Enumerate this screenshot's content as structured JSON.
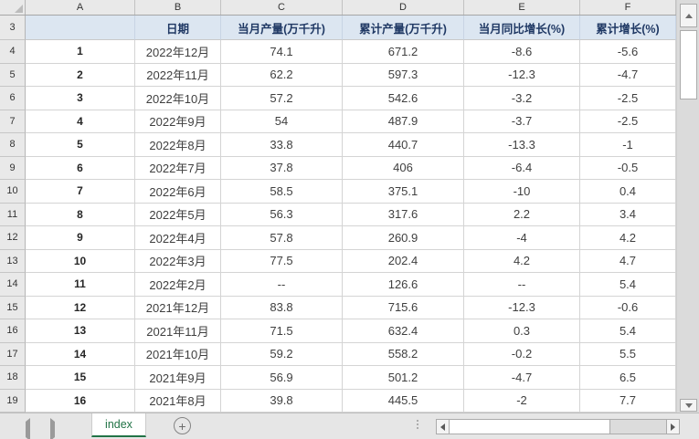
{
  "colors": {
    "header_fill": "#dce6f1",
    "header_text": "#1f3864",
    "tab_green": "#217346",
    "grid_line": "#d4d4d4"
  },
  "column_letters": [
    "A",
    "B",
    "C",
    "D",
    "E",
    "F"
  ],
  "header_row": {
    "row_number": "3",
    "cells": [
      "",
      "日期",
      "当月产量(万千升)",
      "累计产量(万千升)",
      "当月同比增长(%)",
      "累计增长(%)"
    ]
  },
  "rows": [
    {
      "n": "4",
      "a": "1",
      "b": "2022年12月",
      "c": "74.1",
      "d": "671.2",
      "e": "-8.6",
      "f": "-5.6"
    },
    {
      "n": "5",
      "a": "2",
      "b": "2022年11月",
      "c": "62.2",
      "d": "597.3",
      "e": "-12.3",
      "f": "-4.7"
    },
    {
      "n": "6",
      "a": "3",
      "b": "2022年10月",
      "c": "57.2",
      "d": "542.6",
      "e": "-3.2",
      "f": "-2.5"
    },
    {
      "n": "7",
      "a": "4",
      "b": "2022年9月",
      "c": "54",
      "d": "487.9",
      "e": "-3.7",
      "f": "-2.5"
    },
    {
      "n": "8",
      "a": "5",
      "b": "2022年8月",
      "c": "33.8",
      "d": "440.7",
      "e": "-13.3",
      "f": "-1"
    },
    {
      "n": "9",
      "a": "6",
      "b": "2022年7月",
      "c": "37.8",
      "d": "406",
      "e": "-6.4",
      "f": "-0.5"
    },
    {
      "n": "10",
      "a": "7",
      "b": "2022年6月",
      "c": "58.5",
      "d": "375.1",
      "e": "-10",
      "f": "0.4"
    },
    {
      "n": "11",
      "a": "8",
      "b": "2022年5月",
      "c": "56.3",
      "d": "317.6",
      "e": "2.2",
      "f": "3.4"
    },
    {
      "n": "12",
      "a": "9",
      "b": "2022年4月",
      "c": "57.8",
      "d": "260.9",
      "e": "-4",
      "f": "4.2"
    },
    {
      "n": "13",
      "a": "10",
      "b": "2022年3月",
      "c": "77.5",
      "d": "202.4",
      "e": "4.2",
      "f": "4.7"
    },
    {
      "n": "14",
      "a": "11",
      "b": "2022年2月",
      "c": "--",
      "d": "126.6",
      "e": "--",
      "f": "5.4"
    },
    {
      "n": "15",
      "a": "12",
      "b": "2021年12月",
      "c": "83.8",
      "d": "715.6",
      "e": "-12.3",
      "f": "-0.6"
    },
    {
      "n": "16",
      "a": "13",
      "b": "2021年11月",
      "c": "71.5",
      "d": "632.4",
      "e": "0.3",
      "f": "5.4"
    },
    {
      "n": "17",
      "a": "14",
      "b": "2021年10月",
      "c": "59.2",
      "d": "558.2",
      "e": "-0.2",
      "f": "5.5"
    },
    {
      "n": "18",
      "a": "15",
      "b": "2021年9月",
      "c": "56.9",
      "d": "501.2",
      "e": "-4.7",
      "f": "6.5"
    },
    {
      "n": "19",
      "a": "16",
      "b": "2021年8月",
      "c": "39.8",
      "d": "445.5",
      "e": "-2",
      "f": "7.7"
    }
  ],
  "sheet_bar": {
    "tab": "index",
    "add_button": "+"
  }
}
